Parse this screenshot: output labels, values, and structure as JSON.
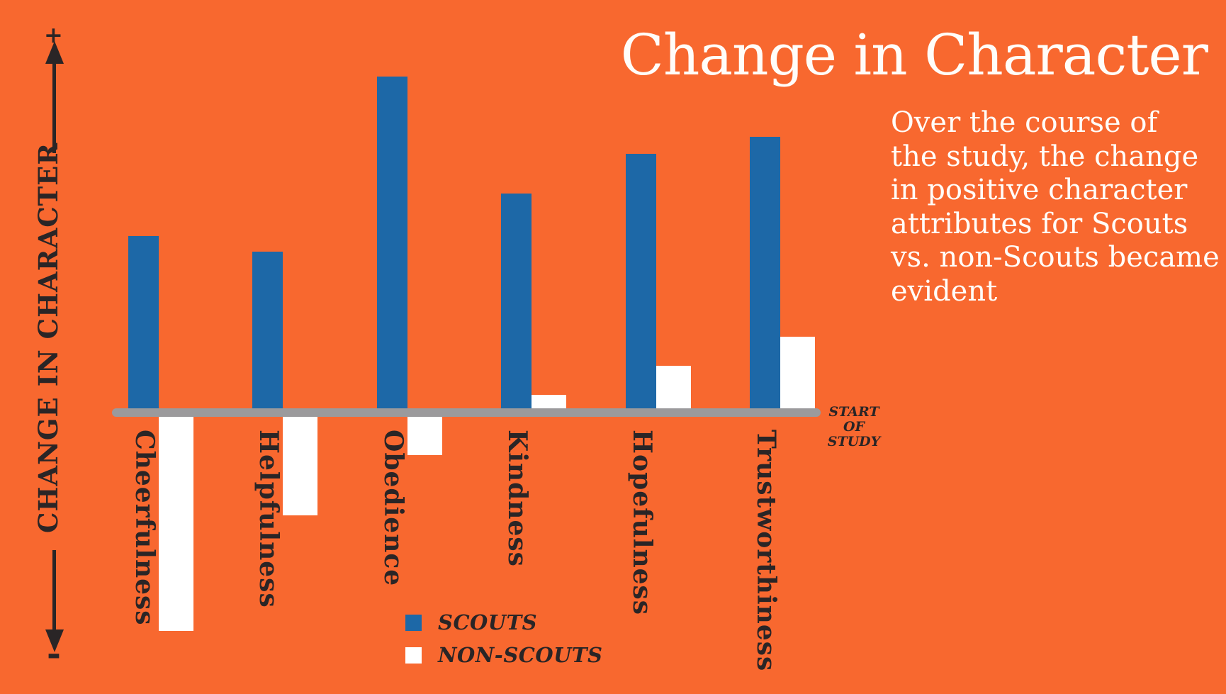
{
  "header": {
    "title": "Change in Character"
  },
  "description_lines": [
    "Over the course of",
    "the study, the change",
    "in positive character",
    "attributes for Scouts",
    "vs. non-Scouts became",
    "evident"
  ],
  "axis": {
    "label": "CHANGE IN CHARACTER",
    "plus": "+",
    "minus": "-"
  },
  "annotation": {
    "lines": [
      "START",
      "OF",
      "STUDY"
    ]
  },
  "legend": {
    "scouts": "SCOUTS",
    "non_scouts": "NON-SCOUTS"
  },
  "colors": {
    "background": "#F8682F",
    "scouts": "#1D68A7",
    "non_scouts": "#FFFFFF",
    "baseline": "#9B9A9C",
    "text_dark": "#2A2526",
    "text_light": "#FFFDF9"
  },
  "chart_data": {
    "type": "bar",
    "title": "Change in Character",
    "categories": [
      "Cheerfulness",
      "Helpfulness",
      "Obedience",
      "Kindness",
      "Hopefulness",
      "Trustworthiness"
    ],
    "series": [
      {
        "name": "SCOUTS",
        "color": "#1D68A7",
        "values": [
          243,
          221,
          468,
          303,
          359,
          383
        ]
      },
      {
        "name": "NON-SCOUTS",
        "color": "#FFFFFF",
        "values": [
          -302,
          -139,
          -54,
          19,
          60,
          101
        ]
      }
    ],
    "units": "relative change from start of study (unlabeled scale, px above/below baseline)",
    "ylabel": "CHANGE IN CHARACTER",
    "baseline_label": "START OF STUDY",
    "legend_position": "bottom-center",
    "grid": false
  }
}
